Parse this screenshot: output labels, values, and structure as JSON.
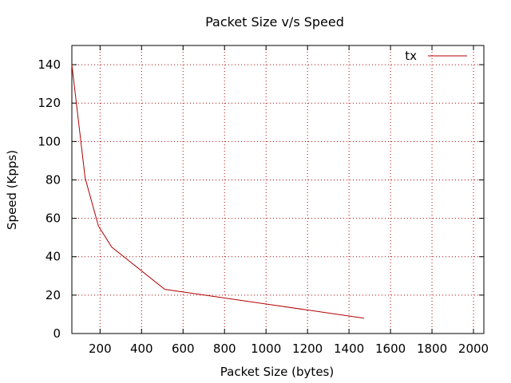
{
  "chart_data": {
    "type": "line",
    "title": "Packet Size v/s Speed",
    "xlabel": "Packet Size (bytes)",
    "ylabel": "Speed (Kpps)",
    "xlim": [
      64,
      2050
    ],
    "ylim": [
      0,
      150
    ],
    "x_ticks": [
      200,
      400,
      600,
      800,
      1000,
      1200,
      1400,
      1600,
      1800,
      2000
    ],
    "y_ticks": [
      0,
      20,
      40,
      60,
      80,
      100,
      120,
      140
    ],
    "grid": true,
    "grid_style": "dotted",
    "legend_position": "top-right",
    "series": [
      {
        "name": "tx",
        "color": "#b00000",
        "x": [
          64,
          128,
          192,
          256,
          512,
          1472
        ],
        "y": [
          140,
          81,
          56,
          45,
          23,
          8
        ]
      }
    ]
  }
}
